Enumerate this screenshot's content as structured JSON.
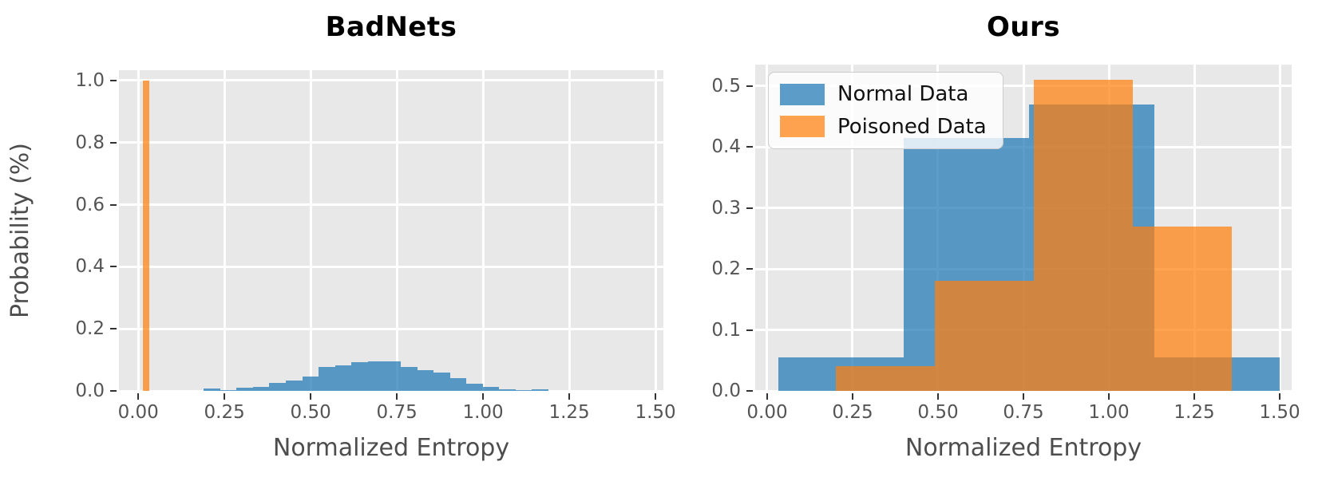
{
  "colors": {
    "normal_data_fill": "rgba(31,119,180,0.72)",
    "poisoned_data_fill": "rgba(255,127,14,0.72)",
    "plot_background": "#e8e8e8",
    "grid": "#ffffff",
    "tick_text": "#555555",
    "axis_label_text": "#4d4d4d",
    "title_text": "#000000",
    "tick_mark": "#333333"
  },
  "chart_data": [
    {
      "type": "bar",
      "subtype": "histogram",
      "title": "BadNets",
      "xlabel": "Normalized Entropy",
      "ylabel": "Probability (%)",
      "xlim": [
        -0.056,
        1.523
      ],
      "ylim": [
        0,
        1.033
      ],
      "grid": true,
      "xticks": [
        {
          "value": 0.0,
          "label": "0.00"
        },
        {
          "value": 0.25,
          "label": "0.25"
        },
        {
          "value": 0.5,
          "label": "0.50"
        },
        {
          "value": 0.75,
          "label": "0.75"
        },
        {
          "value": 1.0,
          "label": "1.00"
        },
        {
          "value": 1.25,
          "label": "1.25"
        },
        {
          "value": 1.5,
          "label": "1.50"
        }
      ],
      "yticks": [
        {
          "value": 0.0,
          "label": "0.0"
        },
        {
          "value": 0.2,
          "label": "0.2"
        },
        {
          "value": 0.4,
          "label": "0.4"
        },
        {
          "value": 0.6,
          "label": "0.6"
        },
        {
          "value": 0.8,
          "label": "0.8"
        },
        {
          "value": 1.0,
          "label": "1.0"
        }
      ],
      "series": [
        {
          "name": "Normal Data",
          "color_key": "normal_data_fill",
          "bin_start": 0.19,
          "bin_width": 0.0476,
          "values": [
            0.007,
            0.003,
            0.01,
            0.014,
            0.026,
            0.034,
            0.047,
            0.076,
            0.083,
            0.092,
            0.096,
            0.094,
            0.077,
            0.066,
            0.058,
            0.042,
            0.023,
            0.012,
            0.005,
            0.002,
            0.004
          ]
        },
        {
          "name": "Poisoned Data",
          "color_key": "poisoned_data_fill",
          "bin_start": 0.014,
          "bin_width": 0.019,
          "values": [
            1.0
          ]
        }
      ]
    },
    {
      "type": "bar",
      "subtype": "histogram",
      "title": "Ours",
      "xlabel": "Normalized Entropy",
      "ylabel": "",
      "xlim": [
        -0.035,
        1.535
      ],
      "ylim": [
        0,
        0.535
      ],
      "grid": true,
      "legend": {
        "position": "upper-left",
        "entries": [
          {
            "label": "Normal Data",
            "color_key": "normal_data_fill"
          },
          {
            "label": "Poisoned Data",
            "color_key": "poisoned_data_fill"
          }
        ]
      },
      "xticks": [
        {
          "value": 0.0,
          "label": "0.00"
        },
        {
          "value": 0.25,
          "label": "0.25"
        },
        {
          "value": 0.5,
          "label": "0.50"
        },
        {
          "value": 0.75,
          "label": "0.75"
        },
        {
          "value": 1.0,
          "label": "1.00"
        },
        {
          "value": 1.25,
          "label": "1.25"
        },
        {
          "value": 1.5,
          "label": "1.50"
        }
      ],
      "yticks": [
        {
          "value": 0.0,
          "label": "0.0"
        },
        {
          "value": 0.1,
          "label": "0.1"
        },
        {
          "value": 0.2,
          "label": "0.2"
        },
        {
          "value": 0.3,
          "label": "0.3"
        },
        {
          "value": 0.4,
          "label": "0.4"
        },
        {
          "value": 0.5,
          "label": "0.5"
        }
      ],
      "series": [
        {
          "name": "Normal Data",
          "color_key": "normal_data_fill",
          "bin_start": 0.033,
          "bin_width": 0.3667,
          "values": [
            0.055,
            0.415,
            0.47,
            0.055
          ]
        },
        {
          "name": "Poisoned Data",
          "color_key": "poisoned_data_fill",
          "bin_start": 0.2,
          "bin_width": 0.29,
          "values": [
            0.04,
            0.18,
            0.51,
            0.27
          ]
        }
      ]
    }
  ]
}
